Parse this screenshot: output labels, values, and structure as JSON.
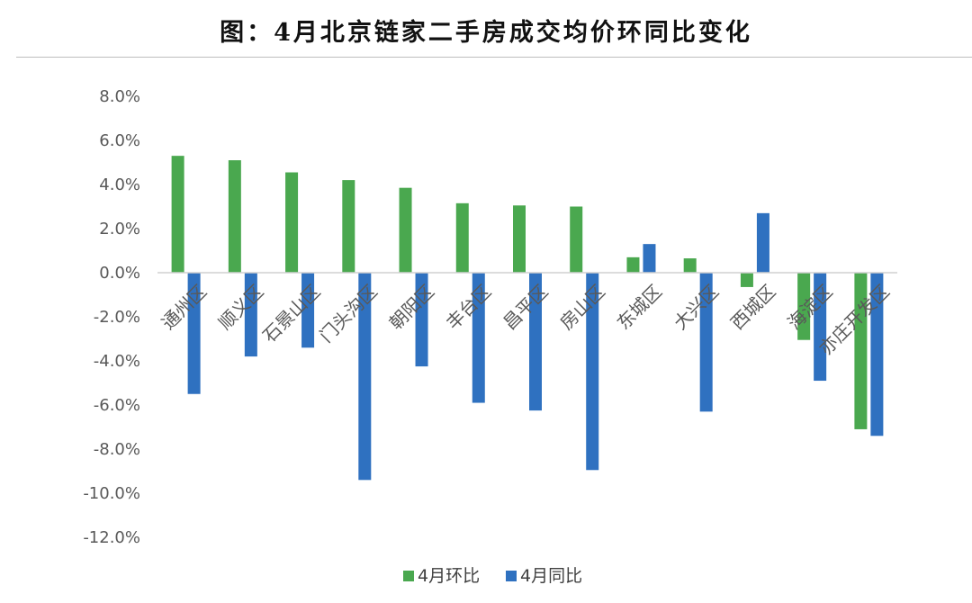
{
  "title": "图：4月北京链家二手房成交均价环同比变化",
  "chart_data": {
    "type": "bar",
    "title": "图：4月北京链家二手房成交均价环同比变化",
    "categories": [
      "通州区",
      "顺义区",
      "石景山区",
      "门头沟区",
      "朝阳区",
      "丰台区",
      "昌平区",
      "房山区",
      "东城区",
      "大兴区",
      "西城区",
      "海淀区",
      "亦庄开发区"
    ],
    "series": [
      {
        "name": "4月环比",
        "color": "#4aa84f",
        "values": [
          5.3,
          5.1,
          4.55,
          4.2,
          3.85,
          3.15,
          3.05,
          3.0,
          0.7,
          0.65,
          -0.65,
          -3.05,
          -7.1
        ]
      },
      {
        "name": "4月同比",
        "color": "#2f71c0",
        "values": [
          -5.5,
          -3.8,
          -3.4,
          -9.4,
          -4.25,
          -5.9,
          -6.25,
          -8.95,
          1.3,
          -6.3,
          2.7,
          -4.9,
          -7.4
        ]
      }
    ],
    "ylim": [
      -12,
      8
    ],
    "yticks": [
      8,
      6,
      4,
      2,
      0,
      -2,
      -4,
      -6,
      -8,
      -10,
      -12
    ],
    "ytick_labels": [
      "8.0%",
      "6.0%",
      "4.0%",
      "2.0%",
      "0.0%",
      "-2.0%",
      "-4.0%",
      "-6.0%",
      "-8.0%",
      "-10.0%",
      "-12.0%"
    ],
    "xlabel": "",
    "ylabel": "",
    "grid": false,
    "legend": "bottom"
  }
}
